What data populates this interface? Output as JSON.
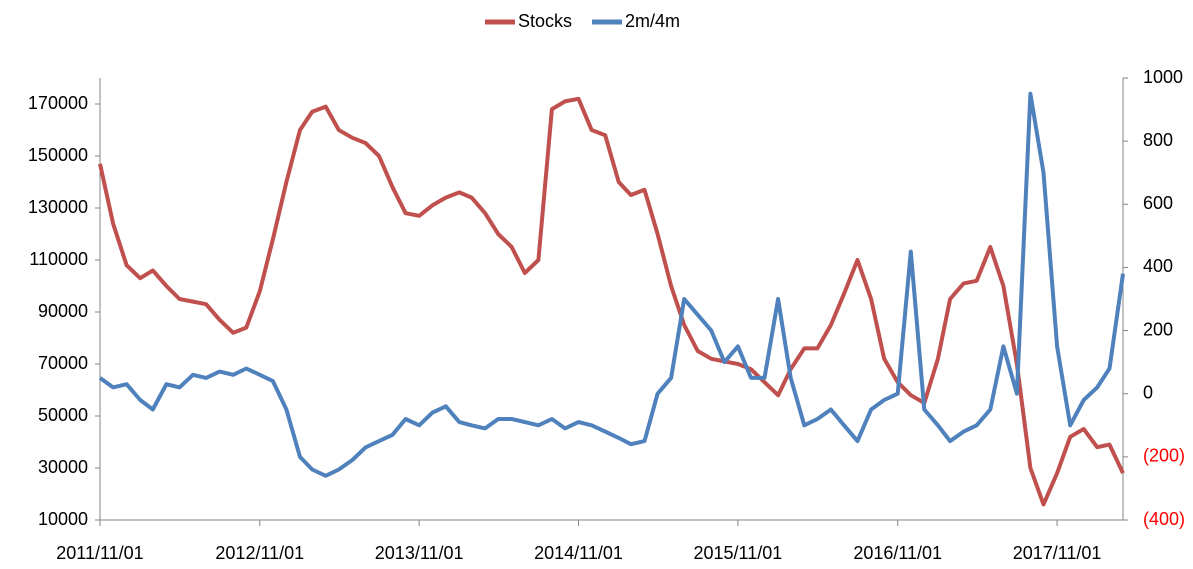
{
  "chart_data": {
    "type": "line",
    "x": [
      "2011/11/01",
      "2011/12/01",
      "2012/01/01",
      "2012/02/01",
      "2012/03/01",
      "2012/04/01",
      "2012/05/01",
      "2012/06/01",
      "2012/07/01",
      "2012/08/01",
      "2012/09/01",
      "2012/10/01",
      "2012/11/01",
      "2012/12/01",
      "2013/01/01",
      "2013/02/01",
      "2013/03/01",
      "2013/04/01",
      "2013/05/01",
      "2013/06/01",
      "2013/07/01",
      "2013/08/01",
      "2013/09/01",
      "2013/10/01",
      "2013/11/01",
      "2013/12/01",
      "2014/01/01",
      "2014/02/01",
      "2014/03/01",
      "2014/04/01",
      "2014/05/01",
      "2014/06/01",
      "2014/07/01",
      "2014/08/01",
      "2014/09/01",
      "2014/10/01",
      "2014/11/01",
      "2014/12/01",
      "2015/01/01",
      "2015/02/01",
      "2015/03/01",
      "2015/04/01",
      "2015/05/01",
      "2015/06/01",
      "2015/07/01",
      "2015/08/01",
      "2015/09/01",
      "2015/10/01",
      "2015/11/01",
      "2015/12/01",
      "2016/01/01",
      "2016/02/01",
      "2016/03/01",
      "2016/04/01",
      "2016/05/01",
      "2016/06/01",
      "2016/07/01",
      "2016/08/01",
      "2016/09/01",
      "2016/10/01",
      "2016/11/01",
      "2016/12/01",
      "2017/01/01",
      "2017/02/01",
      "2017/03/01",
      "2017/04/01",
      "2017/05/01",
      "2017/06/01",
      "2017/07/01",
      "2017/08/01",
      "2017/09/01",
      "2017/10/01",
      "2017/11/01",
      "2017/12/01",
      "2018/01/01",
      "2018/02/01",
      "2018/03/01",
      "2018/04/01"
    ],
    "series": [
      {
        "name": "Stocks",
        "color": "#c0504d",
        "values": [
          147000,
          124000,
          108000,
          103000,
          106000,
          100000,
          95000,
          94000,
          93000,
          87000,
          82000,
          84000,
          98000,
          118000,
          140000,
          160000,
          167000,
          169000,
          160000,
          157000,
          155000,
          150000,
          138000,
          128000,
          127000,
          131000,
          134000,
          136000,
          134000,
          128000,
          120000,
          115000,
          105000,
          110000,
          168000,
          171000,
          172000,
          160000,
          158000,
          140000,
          135000,
          137000,
          120000,
          100000,
          85000,
          75000,
          72000,
          71000,
          70000,
          68000,
          63000,
          58000,
          68000,
          76000,
          76000,
          85000,
          97000,
          110000,
          95000,
          72000,
          63000,
          58000,
          55000,
          72000,
          95000,
          101000,
          102000,
          115000,
          100000,
          70000,
          30000,
          16000,
          28000,
          42000,
          45000,
          38000,
          39000,
          28000
        ]
      },
      {
        "name": "2m/4m",
        "color": "#4f81bd",
        "axis": "y2",
        "values": [
          50,
          20,
          30,
          -20,
          -50,
          30,
          20,
          60,
          50,
          70,
          60,
          80,
          60,
          40,
          -50,
          -200,
          -240,
          -260,
          -240,
          -210,
          -170,
          -150,
          -130,
          -80,
          -100,
          -60,
          -40,
          -90,
          -100,
          -110,
          -80,
          -80,
          -90,
          -100,
          -80,
          -110,
          -90,
          -100,
          -120,
          -140,
          -160,
          -150,
          0,
          50,
          300,
          250,
          200,
          100,
          150,
          50,
          50,
          300,
          50,
          -100,
          -80,
          -50,
          -100,
          -150,
          -50,
          -20,
          0,
          450,
          -50,
          -100,
          -150,
          -120,
          -100,
          -50,
          150,
          0,
          950,
          700,
          150,
          -100,
          -20,
          20,
          80,
          380
        ]
      }
    ],
    "xlim": [
      "2011/11/01",
      "2018/04/01"
    ],
    "xticks": [
      "2011/11/01",
      "2012/11/01",
      "2013/11/01",
      "2014/11/01",
      "2015/11/01",
      "2016/11/01",
      "2017/11/01"
    ],
    "ylim": [
      10000,
      180000
    ],
    "yticks": [
      10000,
      30000,
      50000,
      70000,
      90000,
      110000,
      130000,
      150000,
      170000
    ],
    "y2lim": [
      -400,
      1000
    ],
    "y2ticks": [
      {
        "value": -400,
        "label": "(400)"
      },
      {
        "value": -200,
        "label": "(200)"
      },
      0,
      200,
      400,
      600,
      800,
      1000
    ],
    "y2_negative_label_color": "#ff0000",
    "legend": "top",
    "grid": false
  }
}
